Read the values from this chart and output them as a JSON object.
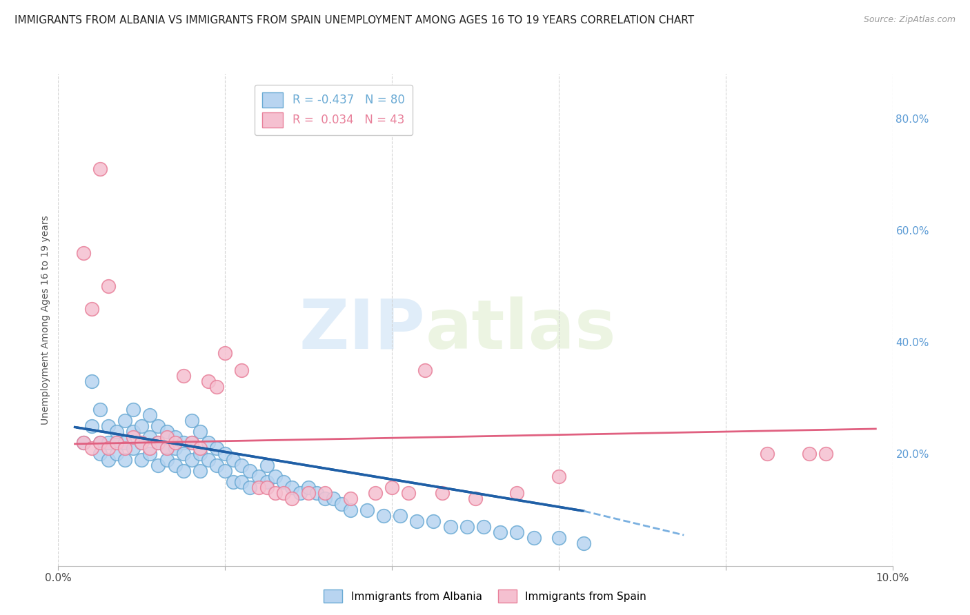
{
  "title": "IMMIGRANTS FROM ALBANIA VS IMMIGRANTS FROM SPAIN UNEMPLOYMENT AMONG AGES 16 TO 19 YEARS CORRELATION CHART",
  "source": "Source: ZipAtlas.com",
  "ylabel": "Unemployment Among Ages 16 to 19 years",
  "xlim": [
    0.0,
    0.1
  ],
  "ylim": [
    0.0,
    0.88
  ],
  "right_yticks": [
    0.2,
    0.4,
    0.6,
    0.8
  ],
  "right_yticklabels": [
    "20.0%",
    "40.0%",
    "60.0%",
    "80.0%"
  ],
  "albania_color": "#b8d4f0",
  "albania_edge": "#6aaad4",
  "spain_color": "#f5c0d0",
  "spain_edge": "#e8809a",
  "albania_R": -0.437,
  "albania_N": 80,
  "spain_R": 0.034,
  "spain_N": 43,
  "albania_label": "Immigrants from Albania",
  "spain_label": "Immigrants from Spain",
  "watermark_zip": "ZIP",
  "watermark_atlas": "atlas",
  "background_color": "#ffffff",
  "grid_color": "#d0d0d0",
  "title_fontsize": 11,
  "axis_label_fontsize": 10,
  "tick_fontsize": 11,
  "albania_line_color": "#1f5fa6",
  "albania_dash_color": "#7ab0e0",
  "spain_line_color": "#e06080",
  "albania_scatter_x": [
    0.003,
    0.004,
    0.004,
    0.005,
    0.005,
    0.005,
    0.006,
    0.006,
    0.006,
    0.007,
    0.007,
    0.007,
    0.008,
    0.008,
    0.008,
    0.009,
    0.009,
    0.009,
    0.01,
    0.01,
    0.01,
    0.011,
    0.011,
    0.011,
    0.012,
    0.012,
    0.012,
    0.013,
    0.013,
    0.013,
    0.014,
    0.014,
    0.014,
    0.015,
    0.015,
    0.015,
    0.016,
    0.016,
    0.016,
    0.017,
    0.017,
    0.017,
    0.018,
    0.018,
    0.019,
    0.019,
    0.02,
    0.02,
    0.021,
    0.021,
    0.022,
    0.022,
    0.023,
    0.023,
    0.024,
    0.025,
    0.025,
    0.026,
    0.027,
    0.028,
    0.029,
    0.03,
    0.031,
    0.032,
    0.033,
    0.034,
    0.035,
    0.037,
    0.039,
    0.041,
    0.043,
    0.045,
    0.047,
    0.049,
    0.051,
    0.053,
    0.055,
    0.057,
    0.06,
    0.063
  ],
  "albania_scatter_y": [
    0.22,
    0.33,
    0.25,
    0.28,
    0.22,
    0.2,
    0.25,
    0.22,
    0.19,
    0.22,
    0.24,
    0.2,
    0.26,
    0.22,
    0.19,
    0.28,
    0.24,
    0.21,
    0.25,
    0.22,
    0.19,
    0.27,
    0.23,
    0.2,
    0.25,
    0.22,
    0.18,
    0.24,
    0.21,
    0.19,
    0.23,
    0.21,
    0.18,
    0.22,
    0.2,
    0.17,
    0.26,
    0.22,
    0.19,
    0.24,
    0.2,
    0.17,
    0.22,
    0.19,
    0.21,
    0.18,
    0.2,
    0.17,
    0.19,
    0.15,
    0.18,
    0.15,
    0.17,
    0.14,
    0.16,
    0.18,
    0.15,
    0.16,
    0.15,
    0.14,
    0.13,
    0.14,
    0.13,
    0.12,
    0.12,
    0.11,
    0.1,
    0.1,
    0.09,
    0.09,
    0.08,
    0.08,
    0.07,
    0.07,
    0.07,
    0.06,
    0.06,
    0.05,
    0.05,
    0.04
  ],
  "spain_scatter_x": [
    0.003,
    0.004,
    0.005,
    0.006,
    0.007,
    0.008,
    0.009,
    0.01,
    0.011,
    0.012,
    0.013,
    0.013,
    0.014,
    0.015,
    0.016,
    0.017,
    0.018,
    0.019,
    0.02,
    0.022,
    0.024,
    0.025,
    0.026,
    0.027,
    0.028,
    0.03,
    0.032,
    0.035,
    0.038,
    0.04,
    0.042,
    0.044,
    0.046,
    0.05,
    0.055,
    0.06,
    0.085,
    0.09,
    0.092,
    0.003,
    0.004,
    0.005,
    0.006
  ],
  "spain_scatter_y": [
    0.22,
    0.21,
    0.22,
    0.21,
    0.22,
    0.21,
    0.23,
    0.22,
    0.21,
    0.22,
    0.23,
    0.21,
    0.22,
    0.34,
    0.22,
    0.21,
    0.33,
    0.32,
    0.38,
    0.35,
    0.14,
    0.14,
    0.13,
    0.13,
    0.12,
    0.13,
    0.13,
    0.12,
    0.13,
    0.14,
    0.13,
    0.35,
    0.13,
    0.12,
    0.13,
    0.16,
    0.2,
    0.2,
    0.2,
    0.56,
    0.46,
    0.71,
    0.5
  ],
  "albania_trend_x0": 0.002,
  "albania_trend_x1": 0.063,
  "albania_trend_y0": 0.248,
  "albania_trend_y1": 0.098,
  "albania_trend_dash_x1": 0.075,
  "albania_trend_dash_y1": 0.055,
  "spain_trend_x0": 0.002,
  "spain_trend_x1": 0.098,
  "spain_trend_y0": 0.218,
  "spain_trend_y1": 0.245
}
